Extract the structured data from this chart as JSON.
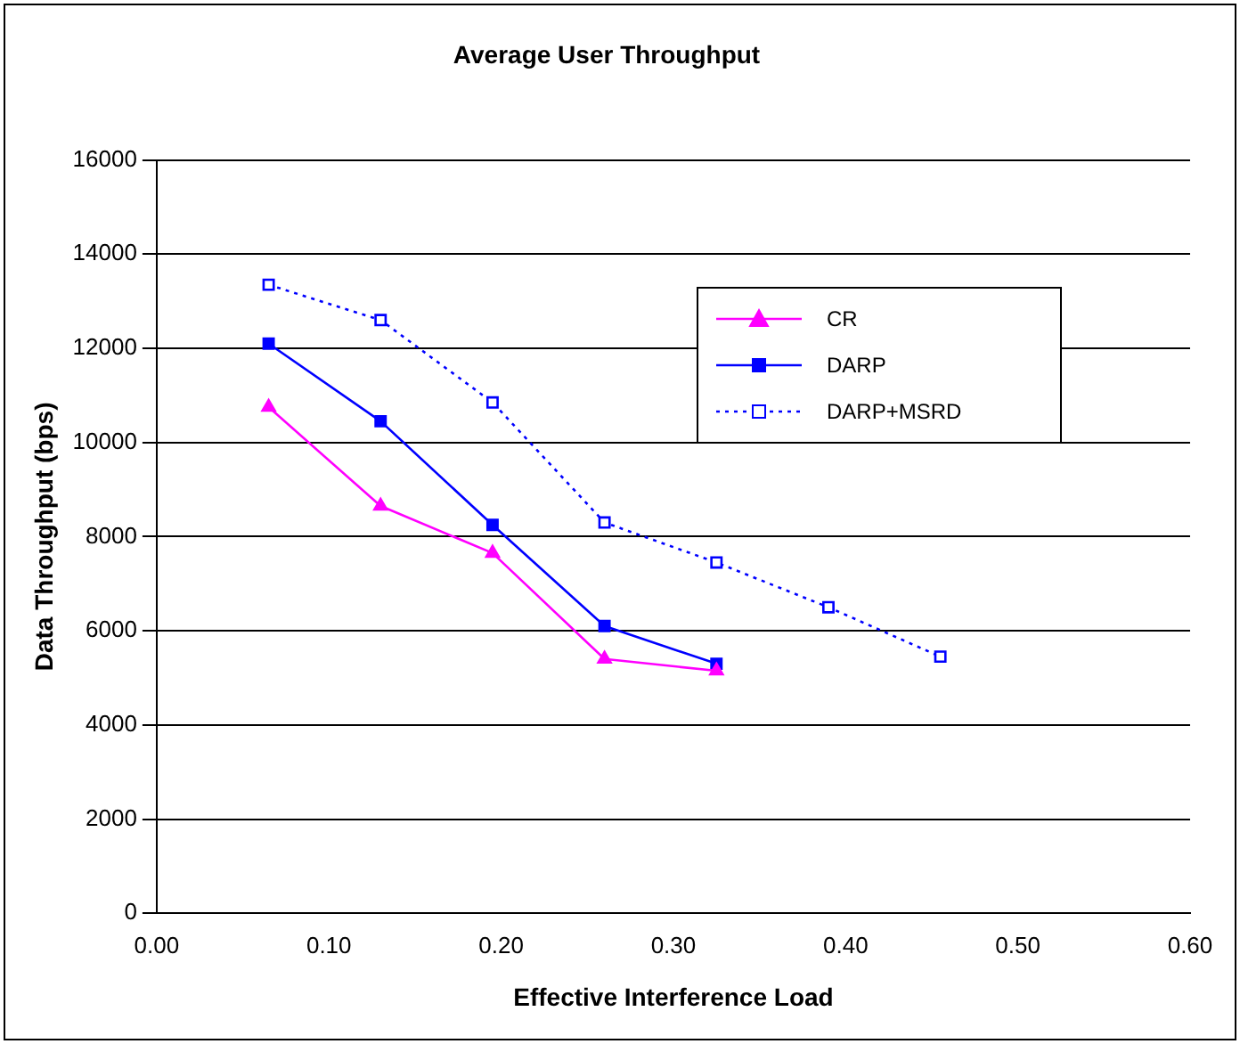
{
  "chart_data": {
    "type": "line",
    "title": "Average User Throughput",
    "xlabel": "Effective Interference Load",
    "ylabel": "Data Throughput (bps)",
    "xlim": [
      0,
      0.6
    ],
    "xticks": [
      {
        "value": 0,
        "label": "0.00"
      },
      {
        "value": 0.1,
        "label": "0.10"
      },
      {
        "value": 0.2,
        "label": "0.20"
      },
      {
        "value": 0.3,
        "label": "0.30"
      },
      {
        "value": 0.4,
        "label": "0.40"
      },
      {
        "value": 0.5,
        "label": "0.50"
      },
      {
        "value": 0.6,
        "label": "0.60"
      }
    ],
    "ylim": [
      0,
      16000
    ],
    "yticks": [
      0,
      2000,
      4000,
      6000,
      8000,
      10000,
      12000,
      14000,
      16000
    ],
    "grid": "y",
    "legend": "top right",
    "series": [
      {
        "name": "CR",
        "color": "#ff00ff",
        "marker": "triangle",
        "line_style": "solid",
        "x": [
          0.065,
          0.13,
          0.195,
          0.26,
          0.325
        ],
        "values": [
          10750,
          8650,
          7650,
          5400,
          5150
        ]
      },
      {
        "name": "DARP",
        "color": "#0000ff",
        "marker": "square",
        "line_style": "solid",
        "x": [
          0.065,
          0.13,
          0.195,
          0.26,
          0.325
        ],
        "values": [
          12100,
          10450,
          8250,
          6100,
          5300
        ]
      },
      {
        "name": "DARP+MSRD",
        "color": "#0000ff",
        "marker": "square",
        "line_style": "dotted",
        "x": [
          0.065,
          0.13,
          0.195,
          0.26,
          0.325,
          0.39,
          0.455
        ],
        "values": [
          13350,
          12600,
          10850,
          8300,
          7450,
          6500,
          5450
        ]
      }
    ]
  }
}
